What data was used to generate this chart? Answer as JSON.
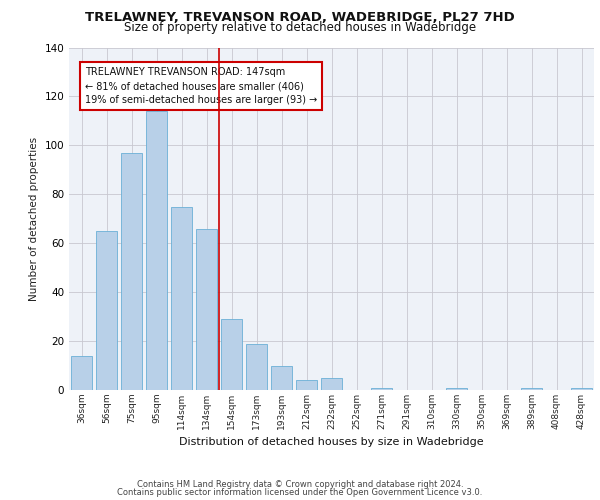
{
  "title": "TRELAWNEY, TREVANSON ROAD, WADEBRIDGE, PL27 7HD",
  "subtitle": "Size of property relative to detached houses in Wadebridge",
  "xlabel": "Distribution of detached houses by size in Wadebridge",
  "ylabel": "Number of detached properties",
  "categories": [
    "36sqm",
    "56sqm",
    "75sqm",
    "95sqm",
    "114sqm",
    "134sqm",
    "154sqm",
    "173sqm",
    "193sqm",
    "212sqm",
    "232sqm",
    "252sqm",
    "271sqm",
    "291sqm",
    "310sqm",
    "330sqm",
    "350sqm",
    "369sqm",
    "389sqm",
    "408sqm",
    "428sqm"
  ],
  "values": [
    14,
    65,
    97,
    114,
    75,
    66,
    29,
    19,
    10,
    4,
    5,
    0,
    1,
    0,
    0,
    1,
    0,
    0,
    1,
    0,
    1
  ],
  "bar_color": "#b8d0e8",
  "bar_edge_color": "#6aafd6",
  "ref_line_color": "#cc0000",
  "ref_line_x": 5.5,
  "annotation_title": "TRELAWNEY TREVANSON ROAD: 147sqm",
  "annotation_line1": "← 81% of detached houses are smaller (406)",
  "annotation_line2": "19% of semi-detached houses are larger (93) →",
  "annotation_box_color": "#ffffff",
  "annotation_box_edge_color": "#cc0000",
  "ylim": [
    0,
    140
  ],
  "background_color": "#eef2f8",
  "footer_line1": "Contains HM Land Registry data © Crown copyright and database right 2024.",
  "footer_line2": "Contains public sector information licensed under the Open Government Licence v3.0."
}
